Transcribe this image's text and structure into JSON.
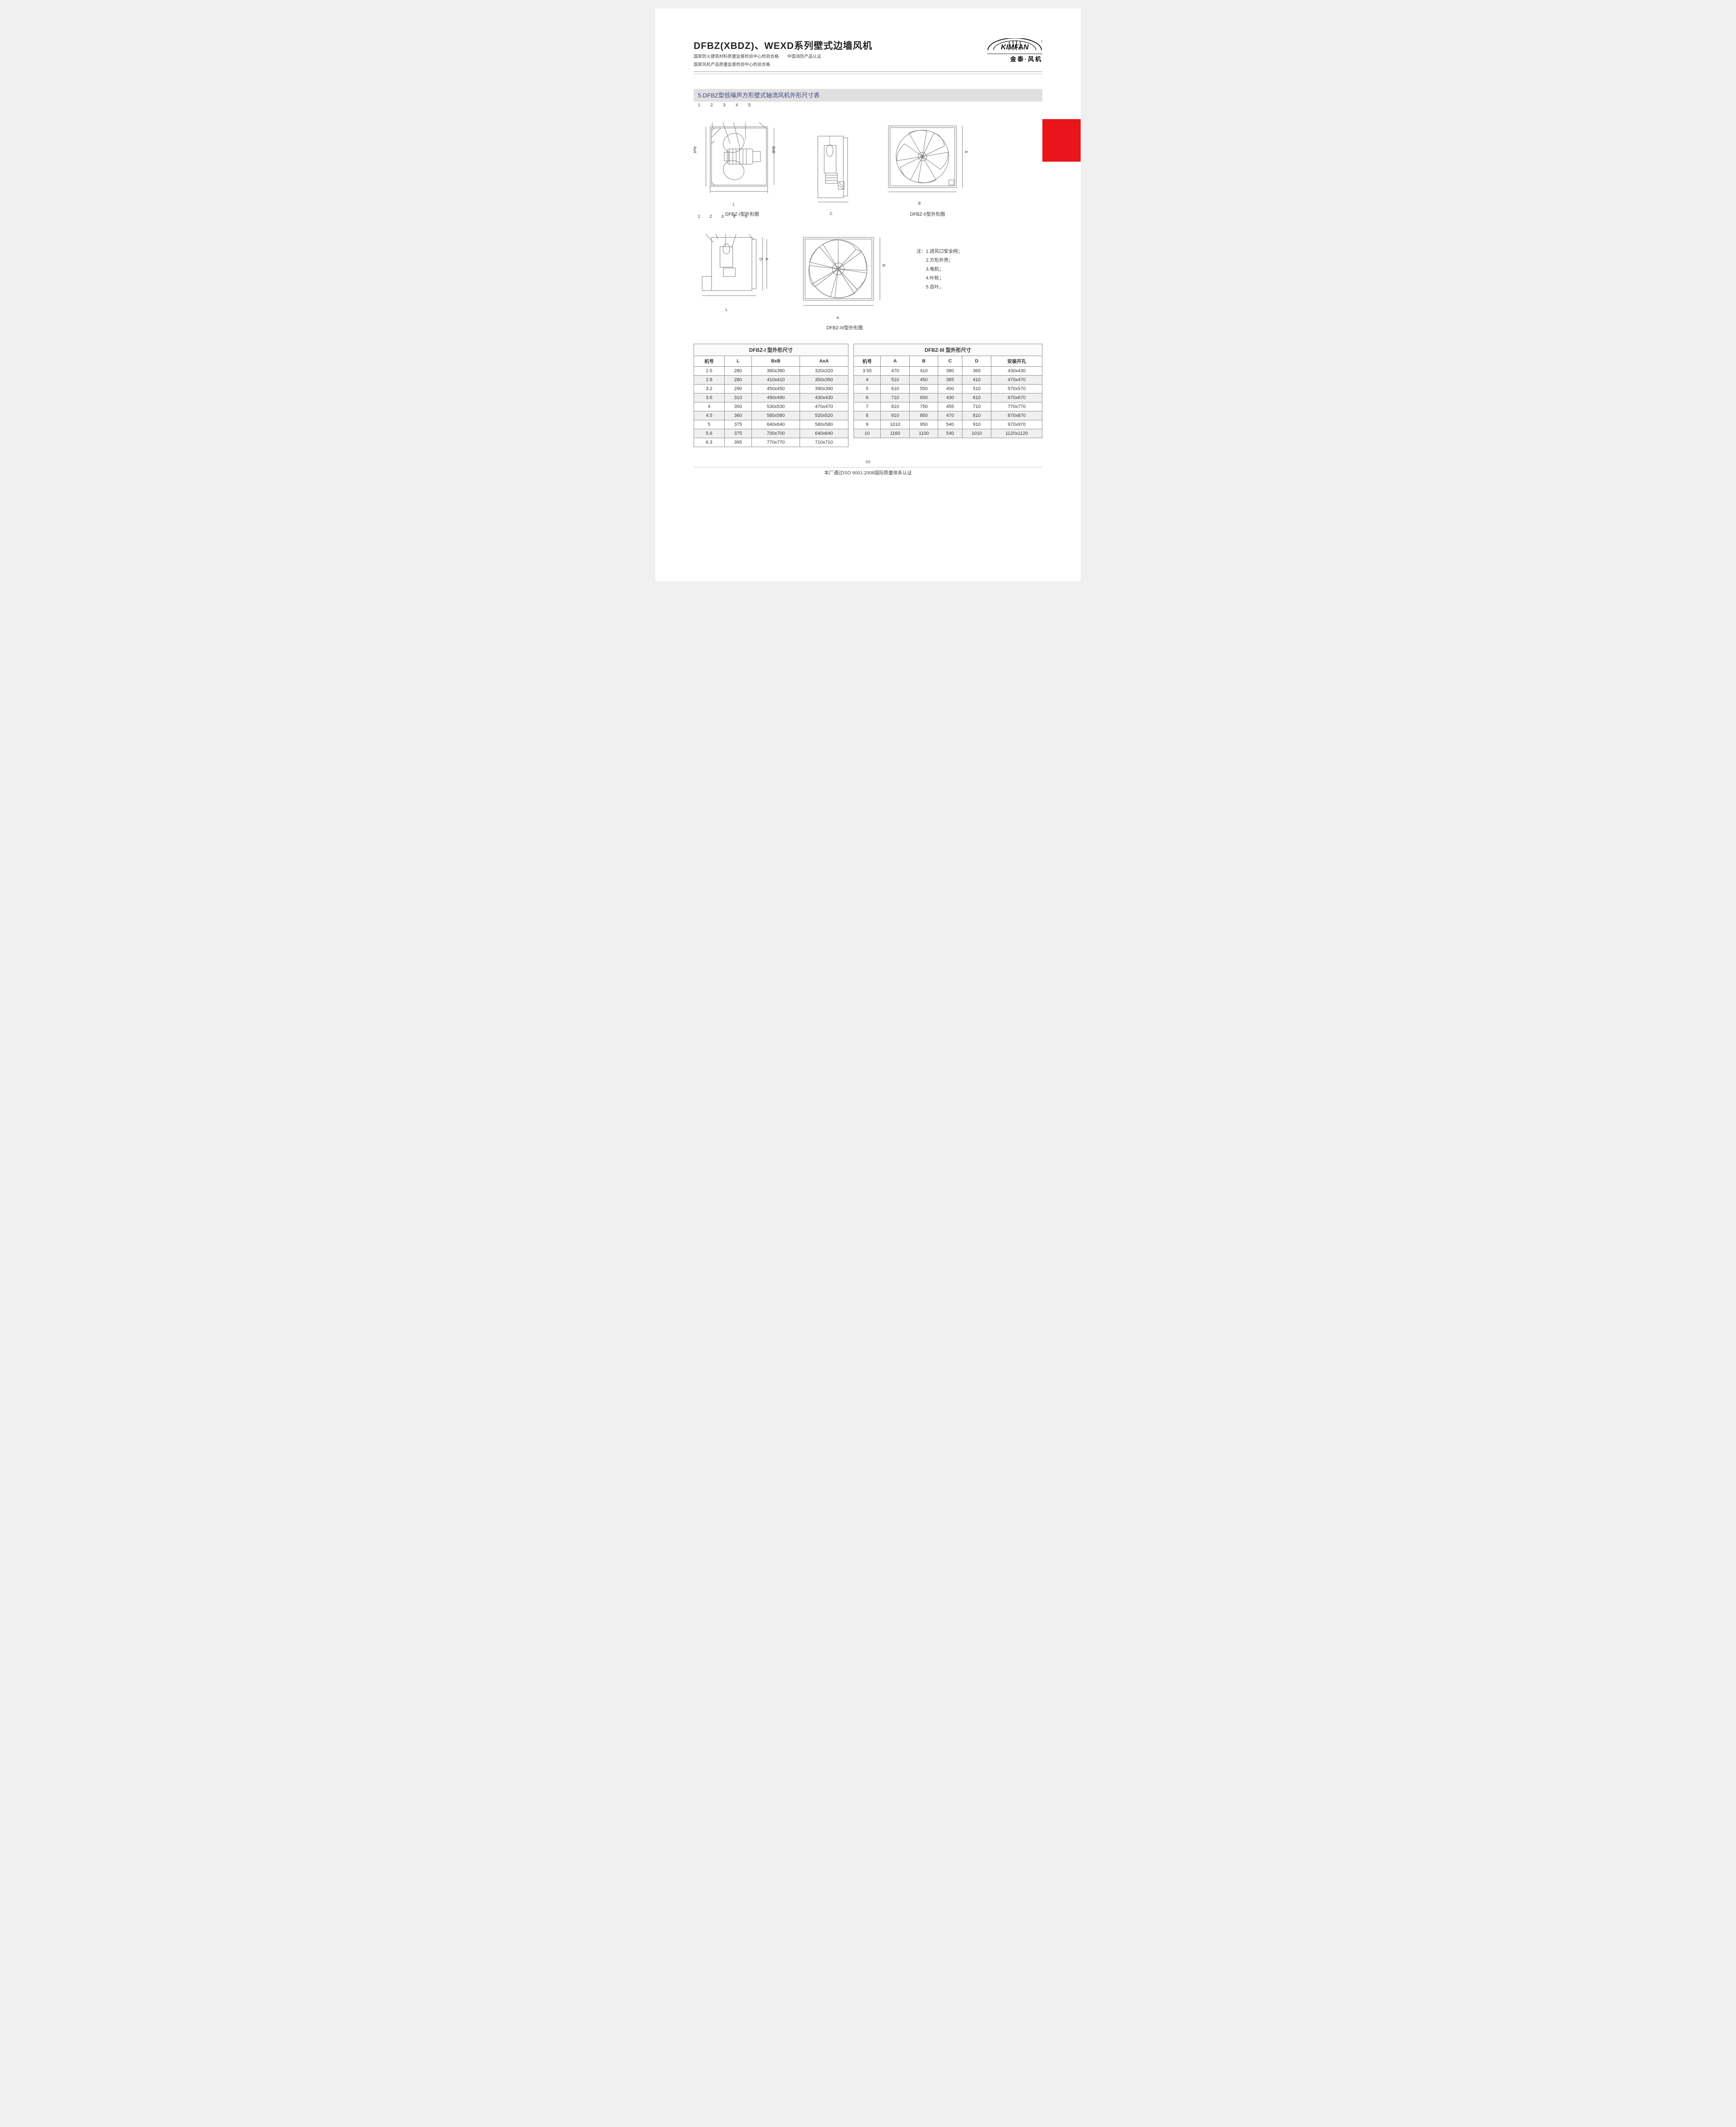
{
  "header": {
    "title": "DFBZ(XBDZ)、WEXD系列壁式边墙风机",
    "subtitle_line1": "国家防火建筑材料质量监督检验中心检验合格　　中国消防产品认证",
    "subtitle_line2": "国家风机产品质量监督检验中心检验合格",
    "logo_text": "KIMFAN",
    "logo_reg": "®",
    "logo_sub": "金泰·风机"
  },
  "section": {
    "title": "5.DFBZ型低噪声方形壁式轴流风机外形尺寸表"
  },
  "diagrams": {
    "d1_caption": "DFBZ-I型外形图",
    "d2_caption": "DFBZ-II型外形图",
    "d3_caption": "DFBZ-III型外形图",
    "callout_numbers": [
      "1",
      "2",
      "3",
      "4",
      "5"
    ],
    "dim_A": "A",
    "dim_B": "B",
    "dim_C": "C",
    "dim_D": "D",
    "dim_L": "L",
    "dim_AxA": "AxA",
    "dim_BxB": "BxB"
  },
  "notes": {
    "heading": "注：",
    "items": [
      "1.进风口安全网；",
      "2.方形外壳；",
      "3.电机；",
      "4.叶轮；",
      "5.百叶。"
    ]
  },
  "table1": {
    "title": "DFBZ-I 型外形尺寸",
    "columns": [
      "机号",
      "L",
      "BxB",
      "AxA"
    ],
    "rows": [
      [
        "2.5",
        "280",
        "380x380",
        "320x320"
      ],
      [
        "2.8",
        "280",
        "410x410",
        "350x350"
      ],
      [
        "3.2",
        "290",
        "450x450",
        "390x390"
      ],
      [
        "3.6",
        "310",
        "490x490",
        "430x430"
      ],
      [
        "4",
        "350",
        "530x530",
        "470x470"
      ],
      [
        "4.5",
        "360",
        "580x580",
        "520x520"
      ],
      [
        "5",
        "375",
        "640x640",
        "580x580"
      ],
      [
        "5.6",
        "375",
        "700x700",
        "640x640"
      ],
      [
        "6.3",
        "395",
        "770x770",
        "710x710"
      ]
    ]
  },
  "table2": {
    "title": "DFBZ-III 型外形尺寸",
    "columns": [
      "机号",
      "A",
      "B",
      "C",
      "D",
      "安装开孔"
    ],
    "rows": [
      [
        "3.55",
        "470",
        "410",
        "380",
        "365",
        "430x430"
      ],
      [
        "4",
        "510",
        "450",
        "385",
        "410",
        "470x470"
      ],
      [
        "5",
        "610",
        "550",
        "400",
        "510",
        "570x570"
      ],
      [
        "6",
        "710",
        "650",
        "430",
        "610",
        "670x670"
      ],
      [
        "7",
        "810",
        "750",
        "455",
        "710",
        "770x770"
      ],
      [
        "8",
        "910",
        "850",
        "470",
        "810",
        "870x870"
      ],
      [
        "9",
        "1010",
        "950",
        "540",
        "910",
        "970x970"
      ],
      [
        "10",
        "1160",
        "1100",
        "540",
        "1010",
        "1120x1120"
      ]
    ]
  },
  "footer": {
    "page_num": "60",
    "note": "本厂通过ISO 9001:2008国际质量体系认证"
  },
  "colors": {
    "accent_red": "#e8151a",
    "section_bg": "#e0e0e0",
    "section_fg": "#3a3a8a",
    "border": "#888888",
    "text": "#333333",
    "row_alt": "#f0f0f0"
  }
}
